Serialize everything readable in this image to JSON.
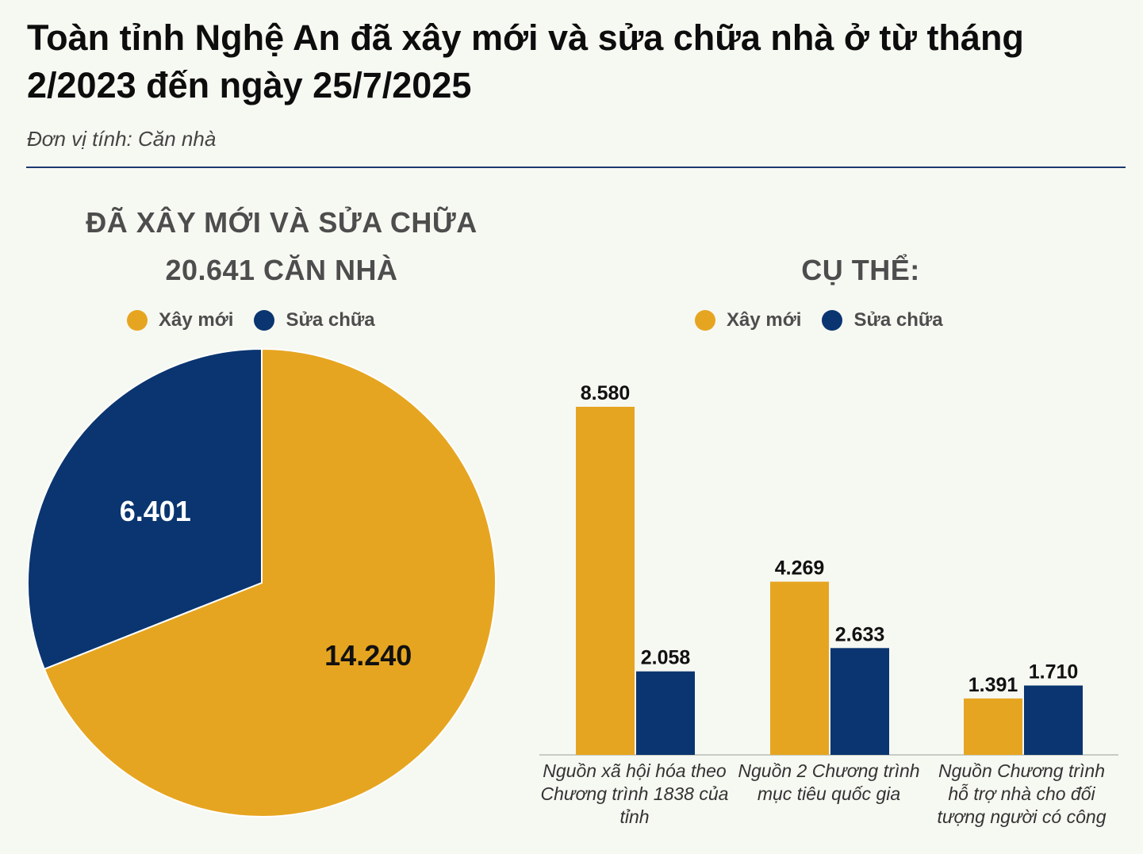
{
  "header": {
    "title": "Toàn tỉnh Nghệ An đã xây mới và sửa chữa nhà ở từ tháng 2/2023 đến ngày 25/7/2025",
    "unit": "Đơn vị tính: Căn nhà"
  },
  "colors": {
    "new": "#e6a521",
    "repair": "#0a3570",
    "background": "#f6f8f2"
  },
  "chart_data": [
    {
      "type": "pie",
      "title_line1": "ĐÃ XÂY MỚI VÀ SỬA CHỮA",
      "title_line2": "20.641 CĂN NHÀ",
      "legend": [
        "Xây mới",
        "Sửa chữa"
      ],
      "slices": [
        {
          "name": "Xây mới",
          "value": 14240,
          "label": "14.240"
        },
        {
          "name": "Sửa chữa",
          "value": 6401,
          "label": "6.401"
        }
      ]
    },
    {
      "type": "bar",
      "title": "CỤ THỂ:",
      "legend": [
        "Xây mới",
        "Sửa chữa"
      ],
      "categories": [
        "Nguồn xã hội hóa theo Chương trình 1838 của tỉnh",
        "Nguồn 2 Chương trình mục tiêu quốc gia",
        "Nguồn Chương trình hỗ trợ nhà cho đối tượng người có công"
      ],
      "series": [
        {
          "name": "Xây mới",
          "values": [
            8580,
            4269,
            1391
          ],
          "labels": [
            "8.580",
            "4.269",
            "1.391"
          ]
        },
        {
          "name": "Sửa chữa",
          "values": [
            2058,
            2633,
            1710
          ],
          "labels": [
            "2.058",
            "2.633",
            "1.710"
          ]
        }
      ]
    }
  ]
}
